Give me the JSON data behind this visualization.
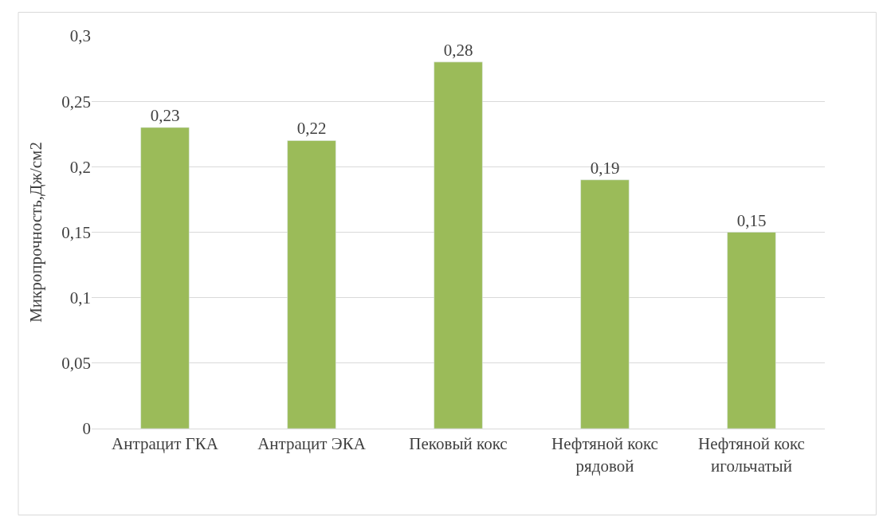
{
  "chart_data": {
    "type": "bar",
    "categories": [
      "Антрацит ГКА",
      "Антрацит ЭКА",
      "Пековый кокс",
      "Нефтяной кокс\nрядовой",
      "Нефтяной кокс\nигольчатый"
    ],
    "values": [
      0.23,
      0.22,
      0.28,
      0.19,
      0.15
    ],
    "value_labels": [
      "0,23",
      "0,22",
      "0,28",
      "0,19",
      "0,15"
    ],
    "color": "#9bbb59",
    "ylabel": "Микропрочность,Дж/см2",
    "ylim": [
      0,
      0.3
    ],
    "yticks": [
      {
        "value": 0,
        "label": "0"
      },
      {
        "value": 0.05,
        "label": "0,05"
      },
      {
        "value": 0.1,
        "label": "0,1"
      },
      {
        "value": 0.15,
        "label": "0,15"
      },
      {
        "value": 0.2,
        "label": "0,2"
      },
      {
        "value": 0.25,
        "label": "0,25"
      },
      {
        "value": 0.3,
        "label": "0,3"
      }
    ],
    "grid": "y"
  }
}
